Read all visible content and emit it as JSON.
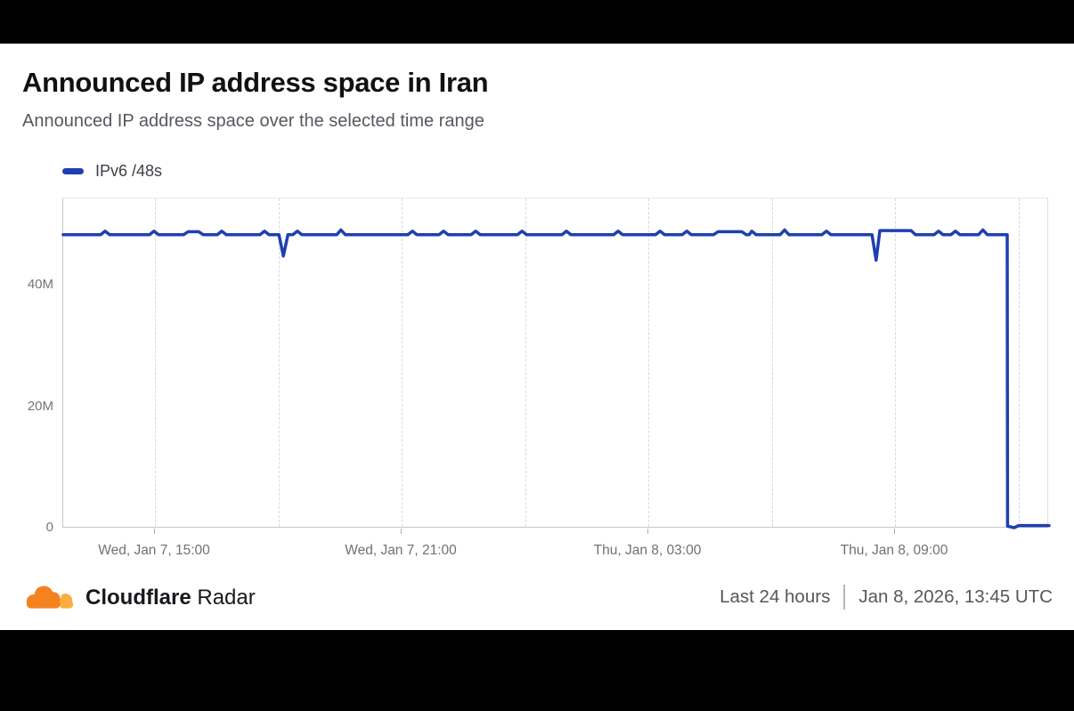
{
  "page": {
    "title": "Announced IP address space in Iran",
    "subtitle": "Announced IP address space over the selected time range"
  },
  "legend": {
    "series_label": "IPv6 /48s"
  },
  "footer": {
    "brand_bold": "Cloudflare",
    "brand_regular": "Radar",
    "time_range": "Last 24 hours",
    "timestamp": "Jan 8, 2026, 13:45 UTC"
  },
  "colors": {
    "line": "#1E40AF",
    "brand_orange": "#F6821F",
    "brand_light_orange": "#FBAD41",
    "axis_text": "#6e7177"
  },
  "chart_data": {
    "type": "line",
    "title": "Announced IP address space in Iran",
    "series_name": "IPv6 /48s",
    "y_unit": "millions of /48s",
    "x_unit": "hours elapsed in the 24h window (0 = Wed Jan 7 ~12:45 UTC, 24 = Thu Jan 8 ~12:45 UTC)",
    "x_range_hours": [
      0,
      24
    ],
    "ylim": [
      0,
      54.5
    ],
    "grid": "vertical dashed every 3 hours",
    "legend_position": "top-left above plot",
    "y_ticks": [
      {
        "value": 0,
        "label": "0"
      },
      {
        "value": 20,
        "label": "20M"
      },
      {
        "value": 40,
        "label": "40M"
      }
    ],
    "x_ticks": [
      {
        "t": 2.25,
        "label": "Wed, Jan 7, 15:00"
      },
      {
        "t": 8.25,
        "label": "Wed, Jan 7, 21:00"
      },
      {
        "t": 14.25,
        "label": "Thu, Jan 8, 03:00"
      },
      {
        "t": 20.25,
        "label": "Thu, Jan 8, 09:00"
      }
    ],
    "points": [
      [
        0,
        48.5
      ],
      [
        0.91,
        48.5
      ],
      [
        1.02,
        49.1
      ],
      [
        1.13,
        48.5
      ],
      [
        2.1,
        48.5
      ],
      [
        2.21,
        49.1
      ],
      [
        2.32,
        48.5
      ],
      [
        2.93,
        48.5
      ],
      [
        3.04,
        49.0
      ],
      [
        3.3,
        49.0
      ],
      [
        3.41,
        48.5
      ],
      [
        3.75,
        48.5
      ],
      [
        3.86,
        49.1
      ],
      [
        3.97,
        48.5
      ],
      [
        4.79,
        48.5
      ],
      [
        4.9,
        49.1
      ],
      [
        5.01,
        48.5
      ],
      [
        5.25,
        48.5
      ],
      [
        5.36,
        45.0
      ],
      [
        5.47,
        48.5
      ],
      [
        5.59,
        48.5
      ],
      [
        5.7,
        49.1
      ],
      [
        5.81,
        48.5
      ],
      [
        6.66,
        48.5
      ],
      [
        6.76,
        49.3
      ],
      [
        6.87,
        48.5
      ],
      [
        8.39,
        48.5
      ],
      [
        8.5,
        49.1
      ],
      [
        8.61,
        48.5
      ],
      [
        9.15,
        48.5
      ],
      [
        9.26,
        49.1
      ],
      [
        9.37,
        48.5
      ],
      [
        9.93,
        48.5
      ],
      [
        10.04,
        49.1
      ],
      [
        10.15,
        48.5
      ],
      [
        11.06,
        48.5
      ],
      [
        11.17,
        49.1
      ],
      [
        11.28,
        48.5
      ],
      [
        12.14,
        48.5
      ],
      [
        12.25,
        49.1
      ],
      [
        12.36,
        48.5
      ],
      [
        13.4,
        48.5
      ],
      [
        13.51,
        49.1
      ],
      [
        13.62,
        48.5
      ],
      [
        14.42,
        48.5
      ],
      [
        14.53,
        49.1
      ],
      [
        14.64,
        48.5
      ],
      [
        15.07,
        48.5
      ],
      [
        15.18,
        49.1
      ],
      [
        15.29,
        48.5
      ],
      [
        15.83,
        48.5
      ],
      [
        15.94,
        49.0
      ],
      [
        16.52,
        49.0
      ],
      [
        16.63,
        48.5
      ],
      [
        16.7,
        48.5
      ],
      [
        16.76,
        49.1
      ],
      [
        16.87,
        48.5
      ],
      [
        17.45,
        48.5
      ],
      [
        17.56,
        49.3
      ],
      [
        17.67,
        48.5
      ],
      [
        18.47,
        48.5
      ],
      [
        18.58,
        49.1
      ],
      [
        18.69,
        48.5
      ],
      [
        19.69,
        48.5
      ],
      [
        19.79,
        44.3
      ],
      [
        19.88,
        49.2
      ],
      [
        20.64,
        49.2
      ],
      [
        20.75,
        48.5
      ],
      [
        21.2,
        48.5
      ],
      [
        21.31,
        49.1
      ],
      [
        21.42,
        48.5
      ],
      [
        21.61,
        48.5
      ],
      [
        21.72,
        49.1
      ],
      [
        21.83,
        48.5
      ],
      [
        22.28,
        48.5
      ],
      [
        22.39,
        49.3
      ],
      [
        22.5,
        48.5
      ],
      [
        22.98,
        48.5
      ],
      [
        22.99,
        0.4
      ],
      [
        23.15,
        0.15
      ],
      [
        23.26,
        0.5
      ],
      [
        24,
        0.5
      ]
    ]
  }
}
